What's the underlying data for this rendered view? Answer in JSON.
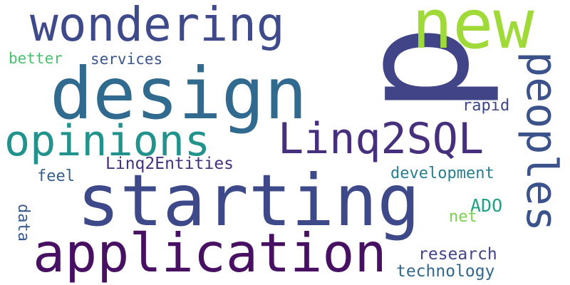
{
  "word_cloud": {
    "words": [
      {
        "key": "p",
        "text": "p",
        "color": "#414487"
      },
      {
        "key": "new",
        "text": "new",
        "color": "#a0da39"
      },
      {
        "key": "wondering",
        "text": "wondering",
        "color": "#3e4a89"
      },
      {
        "key": "design",
        "text": "design",
        "color": "#306a8e"
      },
      {
        "key": "starting",
        "text": "starting",
        "color": "#3e4989"
      },
      {
        "key": "application",
        "text": "application",
        "color": "#471063"
      },
      {
        "key": "opinions",
        "text": "opinions",
        "color": "#22928c"
      },
      {
        "key": "linq2sql",
        "text": "Linq2SQL",
        "color": "#46307e"
      },
      {
        "key": "peoples",
        "text": "peoples",
        "color": "#3b528b"
      },
      {
        "key": "linq2entities",
        "text": "Linq2Entities",
        "color": "#46317e"
      },
      {
        "key": "services",
        "text": "services",
        "color": "#3a548c"
      },
      {
        "key": "better",
        "text": "better",
        "color": "#4ac16d"
      },
      {
        "key": "rapid",
        "text": "rapid",
        "color": "#3f4788"
      },
      {
        "key": "development",
        "text": "development",
        "color": "#277f8e"
      },
      {
        "key": "feel",
        "text": "feel",
        "color": "#355f8d"
      },
      {
        "key": "ado",
        "text": "ADO",
        "color": "#1fa187"
      },
      {
        "key": "net",
        "text": "net",
        "color": "#7ad151"
      },
      {
        "key": "data",
        "text": "data",
        "color": "#38598c"
      },
      {
        "key": "research",
        "text": "research",
        "color": "#414487"
      },
      {
        "key": "technology",
        "text": "technology",
        "color": "#31688e"
      }
    ]
  }
}
